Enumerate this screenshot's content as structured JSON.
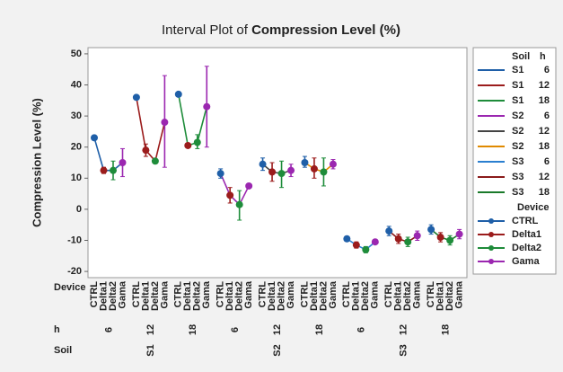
{
  "chart_data": {
    "type": "interval",
    "title": "Interval Plot of",
    "title_bold": "Compression Level (%)",
    "ylabel": "Compression Level (%)",
    "ylim": [
      -22,
      52
    ],
    "yticks": [
      -20,
      -10,
      0,
      10,
      20,
      30,
      40,
      50
    ],
    "row_labels": [
      "Device",
      "h",
      "Soil"
    ],
    "devices": [
      {
        "name": "CTRL",
        "color": "#1f5fa8"
      },
      {
        "name": "Delta1",
        "color": "#9b1c1c"
      },
      {
        "name": "Delta2",
        "color": "#1e8c3a"
      },
      {
        "name": "Gama",
        "color": "#9b27b0"
      }
    ],
    "legend_titles": [
      "Soil",
      "h"
    ],
    "device_legend_title": "Device",
    "soils": [
      {
        "name": "S1",
        "levels": [
          {
            "h": "6",
            "color": "#1f5fa8",
            "means": [
              23,
              12.5,
              12.5,
              15
            ],
            "lower": [
              22.5,
              11.5,
              9.5,
              10.5
            ],
            "upper": [
              23.5,
              13.5,
              15.5,
              19.5
            ]
          },
          {
            "h": "12",
            "color": "#9b1c1c",
            "means": [
              36,
              19,
              15.5,
              28
            ],
            "lower": [
              35.5,
              17,
              15,
              13.5
            ],
            "upper": [
              36.5,
              21,
              16,
              43
            ]
          },
          {
            "h": "18",
            "color": "#1e8c3a",
            "means": [
              37,
              20.5,
              21.5,
              33
            ],
            "lower": [
              36.5,
              20,
              19.5,
              20
            ],
            "upper": [
              37.5,
              21,
              24,
              46
            ]
          }
        ]
      },
      {
        "name": "S2",
        "levels": [
          {
            "h": "6",
            "color": "#9b27b0",
            "means": [
              11.5,
              4.5,
              1.5,
              7.5
            ],
            "lower": [
              10,
              2,
              -3.5,
              7
            ],
            "upper": [
              13,
              7,
              6,
              8
            ]
          },
          {
            "h": "12",
            "color": "#444444",
            "means": [
              14.5,
              12,
              11.5,
              12.5
            ],
            "lower": [
              12.5,
              9,
              7,
              10.5
            ],
            "upper": [
              16.5,
              15,
              15.5,
              14.5
            ]
          },
          {
            "h": "18",
            "color": "#e08a00",
            "means": [
              15,
              13,
              12,
              14.5
            ],
            "lower": [
              13.5,
              10,
              7.5,
              13
            ],
            "upper": [
              17,
              16.5,
              16.5,
              16
            ]
          }
        ]
      },
      {
        "name": "S3",
        "levels": [
          {
            "h": "6",
            "color": "#2a7fd0",
            "means": [
              -9.5,
              -11.5,
              -13,
              -10.5
            ],
            "lower": [
              -10,
              -12.5,
              -14,
              -11
            ],
            "upper": [
              -9,
              -10.5,
              -12,
              -10
            ]
          },
          {
            "h": "12",
            "color": "#8a1a1a",
            "means": [
              -7,
              -9.5,
              -10.5,
              -8.5
            ],
            "lower": [
              -8.5,
              -11,
              -12,
              -10
            ],
            "upper": [
              -5.5,
              -8,
              -9,
              -7
            ]
          },
          {
            "h": "18",
            "color": "#1a7a2a",
            "means": [
              -6.5,
              -9,
              -10,
              -8
            ],
            "lower": [
              -8,
              -10.5,
              -11.5,
              -9.5
            ],
            "upper": [
              -5,
              -7.5,
              -8.5,
              -6.5
            ]
          }
        ]
      }
    ]
  }
}
